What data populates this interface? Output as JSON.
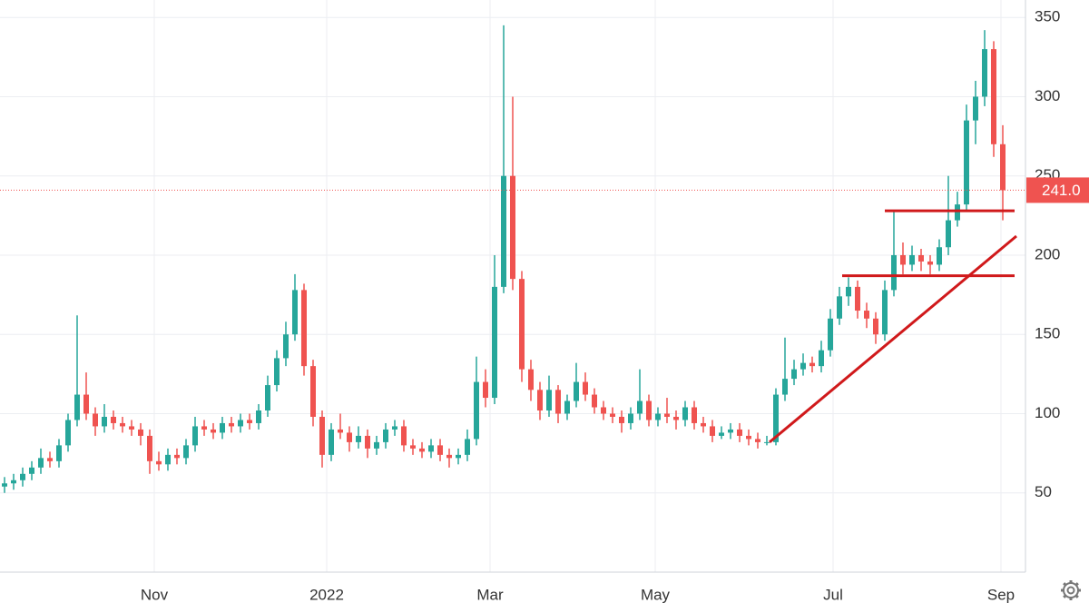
{
  "chart_data": {
    "type": "candlestick",
    "up_color": "#26a69a",
    "down_color": "#ef5350",
    "annotation_color": "#d0191b",
    "grid": true,
    "open": [
      54,
      56,
      58,
      62,
      66,
      72,
      70,
      80,
      96,
      112,
      100,
      92,
      98,
      94,
      92,
      90,
      86,
      70,
      68,
      74,
      72,
      80,
      92,
      90,
      88,
      94,
      92,
      96,
      94,
      102,
      118,
      135,
      150,
      178,
      130,
      98,
      74,
      90,
      88,
      82,
      86,
      78,
      82,
      90,
      92,
      80,
      78,
      76,
      80,
      74,
      72,
      74,
      84,
      120,
      110,
      180,
      250,
      185,
      128,
      115,
      102,
      115,
      100,
      108,
      120,
      112,
      104,
      100,
      98,
      94,
      100,
      108,
      96,
      100,
      98,
      96,
      104,
      94,
      92,
      86,
      88,
      90,
      86,
      84,
      82,
      82,
      112,
      122,
      128,
      132,
      130,
      140,
      160,
      174,
      180,
      165,
      160,
      150,
      178,
      200,
      194,
      200,
      196,
      194,
      205,
      222,
      232,
      285,
      300,
      330,
      270
    ],
    "high": [
      60,
      62,
      66,
      70,
      78,
      76,
      84,
      100,
      162,
      126,
      104,
      106,
      102,
      98,
      96,
      94,
      90,
      76,
      78,
      78,
      84,
      98,
      96,
      94,
      98,
      98,
      100,
      100,
      106,
      124,
      140,
      158,
      188,
      182,
      134,
      102,
      94,
      100,
      92,
      92,
      90,
      86,
      94,
      96,
      96,
      84,
      82,
      84,
      84,
      78,
      78,
      90,
      136,
      128,
      200,
      345,
      300,
      190,
      134,
      120,
      124,
      118,
      112,
      132,
      126,
      116,
      108,
      104,
      102,
      104,
      128,
      112,
      104,
      110,
      102,
      108,
      108,
      98,
      96,
      92,
      94,
      94,
      90,
      88,
      86,
      116,
      148,
      134,
      138,
      136,
      146,
      166,
      180,
      186,
      184,
      170,
      164,
      184,
      228,
      208,
      206,
      204,
      200,
      210,
      250,
      240,
      295,
      310,
      342,
      335,
      282
    ],
    "low": [
      50,
      52,
      54,
      58,
      62,
      66,
      66,
      76,
      92,
      96,
      86,
      88,
      90,
      88,
      86,
      80,
      62,
      64,
      64,
      68,
      68,
      76,
      86,
      84,
      84,
      88,
      88,
      90,
      90,
      98,
      114,
      130,
      146,
      124,
      92,
      66,
      70,
      84,
      76,
      78,
      72,
      74,
      78,
      86,
      76,
      74,
      72,
      72,
      70,
      66,
      68,
      70,
      80,
      104,
      106,
      176,
      178,
      120,
      108,
      96,
      98,
      94,
      96,
      104,
      108,
      100,
      96,
      94,
      88,
      90,
      96,
      92,
      92,
      94,
      90,
      92,
      90,
      88,
      82,
      84,
      84,
      82,
      80,
      78,
      80,
      80,
      108,
      118,
      124,
      126,
      126,
      136,
      156,
      168,
      160,
      154,
      144,
      146,
      174,
      188,
      190,
      190,
      188,
      190,
      200,
      218,
      228,
      270,
      294,
      262,
      222
    ],
    "close": [
      56,
      58,
      62,
      66,
      72,
      70,
      80,
      96,
      112,
      100,
      92,
      98,
      94,
      92,
      90,
      86,
      70,
      68,
      74,
      72,
      80,
      92,
      90,
      88,
      94,
      92,
      96,
      94,
      102,
      118,
      135,
      150,
      178,
      130,
      98,
      74,
      90,
      88,
      82,
      86,
      78,
      82,
      90,
      92,
      80,
      78,
      76,
      80,
      74,
      72,
      74,
      84,
      120,
      110,
      180,
      250,
      185,
      128,
      115,
      102,
      115,
      100,
      108,
      120,
      112,
      104,
      100,
      98,
      94,
      100,
      108,
      96,
      100,
      98,
      96,
      104,
      94,
      92,
      86,
      88,
      90,
      86,
      84,
      82,
      82,
      112,
      122,
      128,
      132,
      130,
      140,
      160,
      174,
      180,
      165,
      160,
      150,
      178,
      200,
      194,
      200,
      196,
      194,
      205,
      222,
      232,
      285,
      300,
      330,
      270,
      241
    ],
    "xlim": [
      -0.5,
      112.5
    ],
    "xticks": [
      {
        "value": 16.5,
        "label": "Nov"
      },
      {
        "value": 35.5,
        "label": "2022"
      },
      {
        "value": 53.5,
        "label": "Mar"
      },
      {
        "value": 71.7,
        "label": "May"
      },
      {
        "value": 91.3,
        "label": "Jul"
      },
      {
        "value": 109.8,
        "label": "Sep"
      }
    ],
    "ylim": [
      0,
      361
    ],
    "yticks": [
      50,
      100,
      150,
      200,
      250,
      300,
      350
    ],
    "last_price": 241,
    "last_price_label": "241.0",
    "annotation_lines": [
      {
        "x": [
          84.3,
          111.5
        ],
        "y": [
          82,
          212
        ]
      },
      {
        "x": [
          97,
          111.3
        ],
        "y": [
          228,
          228
        ]
      },
      {
        "x": [
          92.3,
          111.3
        ],
        "y": [
          187,
          187
        ]
      }
    ]
  }
}
